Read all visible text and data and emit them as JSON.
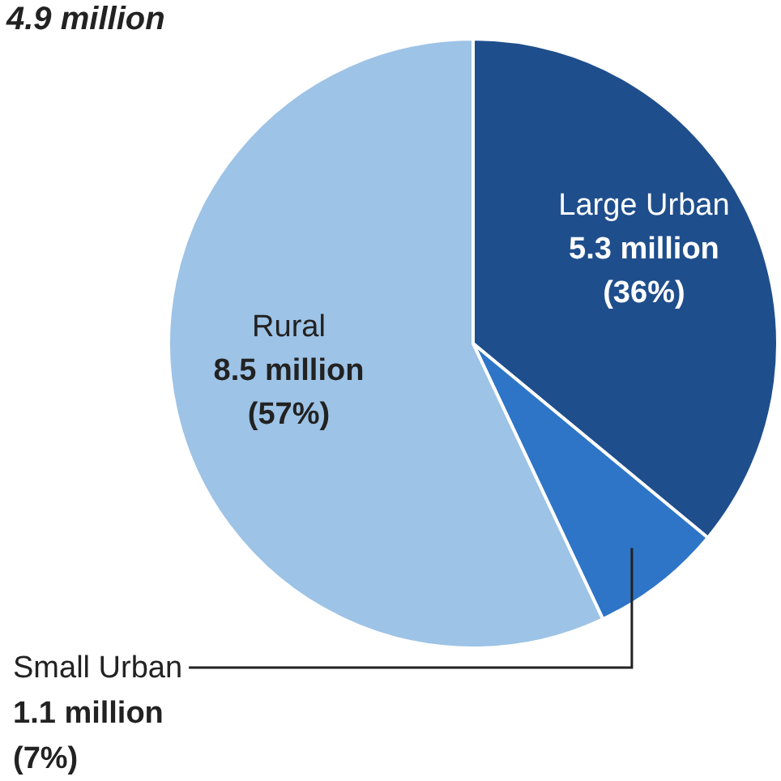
{
  "chart_data": {
    "type": "pie",
    "title": "4.9 million",
    "categories": [
      "Large Urban",
      "Small Urban",
      "Rural"
    ],
    "values": [
      36,
      7,
      57
    ],
    "colors": [
      "#1f4e8c",
      "#2e75c8",
      "#9dc3e6"
    ],
    "value_labels": [
      "5.3 million (36%)",
      "1.1 million (7%)",
      "8.5 million (57%)"
    ]
  }
}
